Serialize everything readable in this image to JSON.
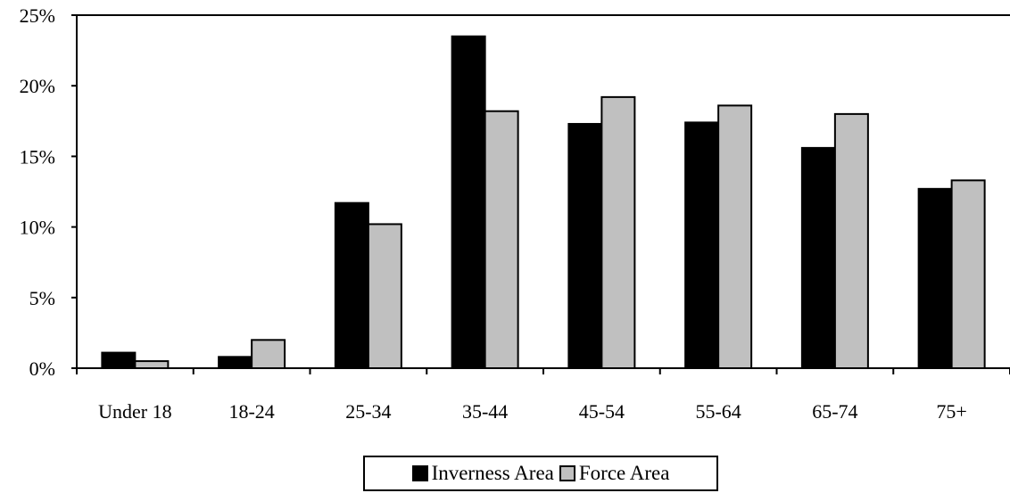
{
  "chart_data": {
    "type": "bar",
    "categories": [
      "Under 18",
      "18-24",
      "25-34",
      "35-44",
      "45-54",
      "55-64",
      "65-74",
      "75+"
    ],
    "series": [
      {
        "name": "Inverness Area",
        "color": "#000000",
        "values": [
          1.1,
          0.8,
          11.7,
          23.5,
          17.3,
          17.4,
          15.6,
          12.7
        ]
      },
      {
        "name": "Force Area",
        "color": "#c0c0c0",
        "values": [
          0.5,
          2.0,
          10.2,
          18.2,
          19.2,
          18.6,
          18.0,
          13.3
        ]
      }
    ],
    "y_ticks": [
      "0%",
      "5%",
      "10%",
      "15%",
      "20%",
      "25%"
    ],
    "ylim": [
      0,
      25
    ],
    "y_unit": "%",
    "title": "",
    "xlabel": "",
    "ylabel": "",
    "grid": false,
    "legend_position": "bottom"
  }
}
